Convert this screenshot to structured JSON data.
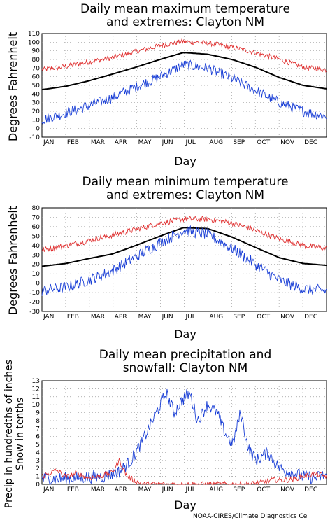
{
  "credit": "NOAA-CIRES/Climate Diagnostics Ce",
  "colors": {
    "mean": "#000000",
    "max_extreme": "#e03030",
    "min_extreme": "#1a3fd6",
    "snow": "#e03030",
    "precip": "#1a3fd6",
    "grid": "#999999"
  },
  "chart_data": [
    {
      "type": "line",
      "title": [
        "Daily mean maximum temperature",
        "and extremes: Clayton NM"
      ],
      "xlabel": "Day",
      "ylabel": "Degrees Fahrenheit",
      "ylim": [
        -10,
        110
      ],
      "yticks": [
        -10,
        0,
        10,
        20,
        30,
        40,
        50,
        60,
        70,
        80,
        90,
        100,
        110
      ],
      "xtick_labels": [
        "JAN",
        "FEB",
        "MAR",
        "APR",
        "MAY",
        "JUN",
        "JUL",
        "AUG",
        "SEP",
        "OCT",
        "NOV",
        "DEC"
      ],
      "grid": true,
      "series": [
        {
          "role": "max_extreme",
          "style": "noisy",
          "x": [
            1,
            32,
            60,
            91,
            121,
            152,
            182,
            213,
            244,
            274,
            305,
            335,
            365
          ],
          "values": [
            68,
            72,
            77,
            82,
            89,
            96,
            101,
            99,
            94,
            88,
            80,
            71,
            68
          ]
        },
        {
          "role": "mean",
          "style": "smooth",
          "x": [
            1,
            32,
            60,
            91,
            121,
            152,
            182,
            213,
            244,
            274,
            305,
            335,
            365
          ],
          "values": [
            45,
            49,
            55,
            63,
            71,
            80,
            88,
            86,
            80,
            71,
            59,
            50,
            46
          ]
        },
        {
          "role": "min_extreme",
          "style": "noisy",
          "x": [
            1,
            32,
            60,
            91,
            121,
            152,
            182,
            213,
            244,
            274,
            305,
            335,
            365
          ],
          "values": [
            10,
            18,
            26,
            36,
            48,
            60,
            74,
            70,
            58,
            44,
            30,
            20,
            14
          ]
        }
      ]
    },
    {
      "type": "line",
      "title": [
        "Daily mean minimum temperature",
        "and extremes: Clayton NM"
      ],
      "xlabel": "Day",
      "ylabel": "Degrees Fahrenheit",
      "ylim": [
        -30,
        80
      ],
      "yticks": [
        -30,
        -20,
        -10,
        0,
        10,
        20,
        30,
        40,
        50,
        60,
        70,
        80
      ],
      "xtick_labels": [
        "JAN",
        "FEB",
        "MAR",
        "APR",
        "MAY",
        "JUN",
        "JUL",
        "AUG",
        "SEP",
        "OCT",
        "NOV",
        "DEC"
      ],
      "grid": true,
      "series": [
        {
          "role": "max_extreme",
          "style": "noisy",
          "x": [
            1,
            32,
            60,
            91,
            121,
            152,
            182,
            213,
            244,
            274,
            305,
            335,
            365
          ],
          "values": [
            35,
            40,
            45,
            51,
            57,
            64,
            68,
            68,
            64,
            56,
            47,
            40,
            37
          ]
        },
        {
          "role": "mean",
          "style": "smooth",
          "x": [
            1,
            32,
            60,
            91,
            121,
            152,
            182,
            213,
            244,
            274,
            305,
            335,
            365
          ],
          "values": [
            18,
            21,
            26,
            31,
            40,
            50,
            59,
            58,
            49,
            38,
            27,
            21,
            19
          ]
        },
        {
          "role": "min_extreme",
          "style": "noisy",
          "x": [
            1,
            32,
            60,
            91,
            121,
            152,
            182,
            213,
            244,
            274,
            305,
            335,
            365
          ],
          "values": [
            -8,
            -4,
            3,
            13,
            28,
            43,
            56,
            52,
            37,
            20,
            3,
            -6,
            -8
          ]
        }
      ]
    },
    {
      "type": "line",
      "title": [
        "Daily mean precipitation and",
        "snowfall: Clayton NM"
      ],
      "xlabel": "Day",
      "ylabel": [
        "Precip in hundredths of inches",
        "Snow in tenths"
      ],
      "ylim": [
        0,
        13
      ],
      "yticks": [
        0,
        1,
        2,
        3,
        4,
        5,
        6,
        7,
        8,
        9,
        10,
        11,
        12,
        13
      ],
      "xtick_labels": [
        "JAN",
        "FEB",
        "MAR",
        "APR",
        "MAY",
        "JUN",
        "JUL",
        "AUG",
        "SEP",
        "OCT",
        "NOV",
        "DEC"
      ],
      "grid": true,
      "series": [
        {
          "role": "precip",
          "style": "noisy",
          "x": [
            1,
            20,
            40,
            60,
            80,
            100,
            115,
            130,
            145,
            160,
            170,
            180,
            190,
            200,
            213,
            225,
            235,
            245,
            255,
            265,
            275,
            290,
            305,
            320,
            335,
            350,
            365
          ],
          "values": [
            0.8,
            0.7,
            0.8,
            0.9,
            1.0,
            1.6,
            3.0,
            5.5,
            8.5,
            11.5,
            9.0,
            10.5,
            11.5,
            8.0,
            10.0,
            9.0,
            6.5,
            5.0,
            9.0,
            4.5,
            3.0,
            4.0,
            2.0,
            1.5,
            1.0,
            0.8,
            1.2
          ]
        },
        {
          "role": "snow",
          "style": "noisy",
          "x": [
            1,
            20,
            32,
            45,
            60,
            75,
            91,
            100,
            110,
            121,
            130,
            145,
            160,
            180,
            200,
            230,
            260,
            274,
            285,
            300,
            305,
            320,
            335,
            350,
            365
          ],
          "values": [
            1.0,
            1.8,
            0.9,
            1.4,
            0.8,
            1.0,
            1.5,
            3.0,
            1.0,
            0.4,
            0.0,
            0.0,
            0.0,
            0.0,
            0.0,
            0.0,
            0.0,
            0.1,
            0.3,
            0.6,
            0.5,
            0.6,
            1.0,
            1.3,
            1.0
          ]
        }
      ]
    }
  ]
}
